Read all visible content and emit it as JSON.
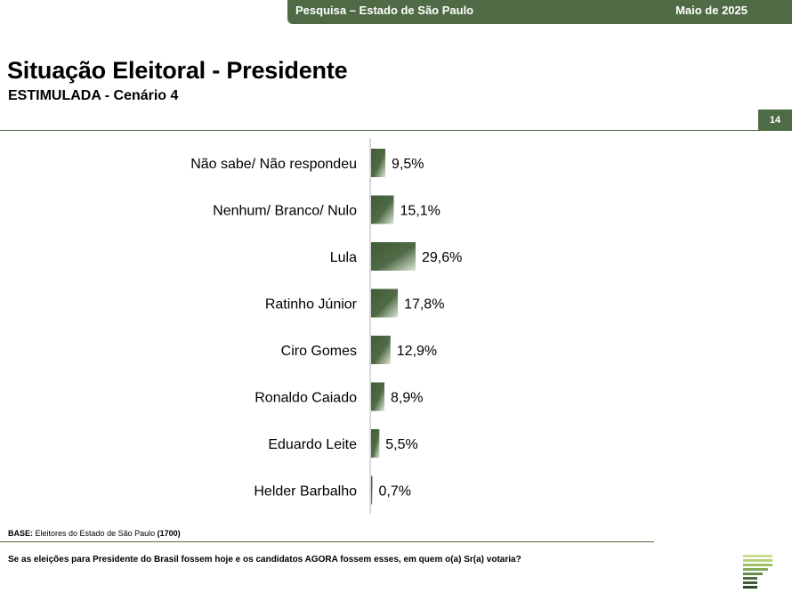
{
  "header": {
    "survey": "Pesquisa – Estado de São Paulo",
    "date": "Maio de 2025"
  },
  "title": "Situação Eleitoral - Presidente",
  "subtitle": "ESTIMULADA - Cenário 4",
  "page_number": "14",
  "base": {
    "label": "BASE:",
    "text": " Eleitores do Estado de São Paulo ",
    "count": "(1700)"
  },
  "question": "Se as eleições para Presidente do Brasil fossem hoje e os candidatos AGORA fossem esses, em quem o(a) Sr(a) votaria?",
  "colors": {
    "accent": "#4f6b45",
    "bar": "#4a6841"
  },
  "chart_data": {
    "type": "bar",
    "orientation": "horizontal",
    "categories": [
      "Não sabe/ Não respondeu",
      "Nenhum/ Branco/ Nulo",
      "Lula",
      "Ratinho Júnior",
      "Ciro Gomes",
      "Ronaldo Caiado",
      "Eduardo Leite",
      "Helder Barbalho"
    ],
    "values": [
      9.5,
      15.1,
      29.6,
      17.8,
      12.9,
      8.9,
      5.5,
      0.7
    ],
    "labels": [
      "9,5%",
      "15,1%",
      "29,6%",
      "17,8%",
      "12,9%",
      "8,9%",
      "5,5%",
      "0,7%"
    ],
    "unit": "%",
    "grid": false,
    "legend": "none"
  }
}
